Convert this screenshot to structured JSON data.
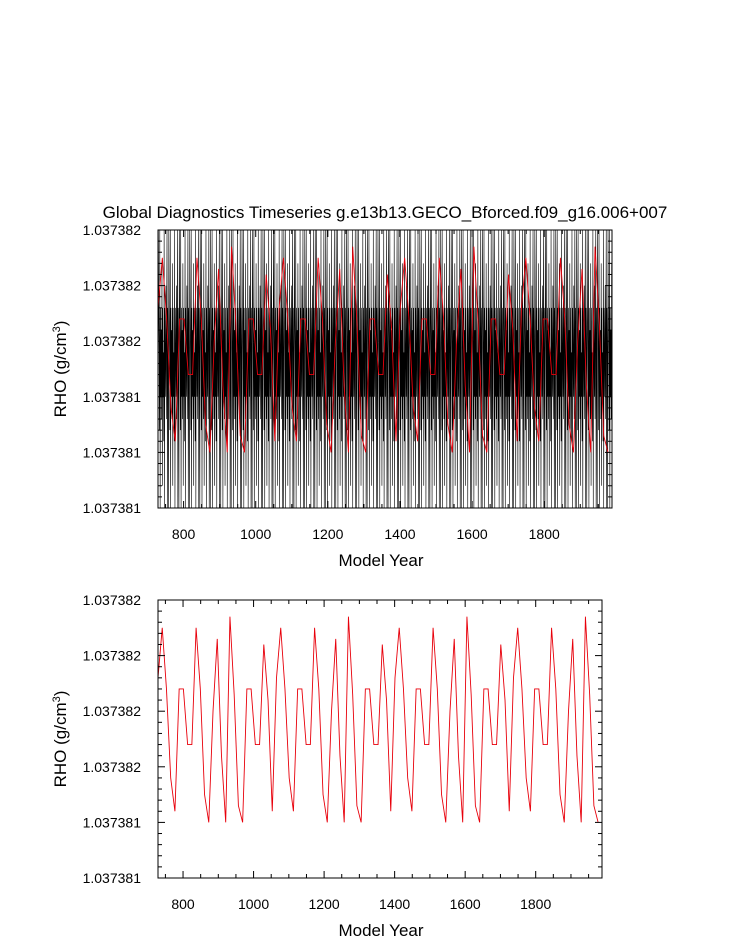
{
  "chart_data": [
    {
      "type": "line",
      "title": "Global Diagnostics Timeseries g.e13b13.GECO_Bforced.f09_g16.006+007",
      "xlabel": "Model Year",
      "ylabel_main": "RHO (g/cm",
      "ylabel_sup": "3",
      "ylabel_close": ")",
      "xlim": [
        729,
        1988
      ],
      "ylim": [
        0,
        5
      ],
      "x_ticks": [
        {
          "value": 800,
          "label": "800"
        },
        {
          "value": 1000,
          "label": "1000"
        },
        {
          "value": 1200,
          "label": "1200"
        },
        {
          "value": 1400,
          "label": "1400"
        },
        {
          "value": 1600,
          "label": "1600"
        },
        {
          "value": 1800,
          "label": "1800"
        }
      ],
      "y_ticks": [
        {
          "value": 0,
          "label": "1.037381"
        },
        {
          "value": 1,
          "label": "1.037381"
        },
        {
          "value": 2,
          "label": "1.037381"
        },
        {
          "value": 3,
          "label": "1.037382"
        },
        {
          "value": 4,
          "label": "1.037382"
        },
        {
          "value": 5,
          "label": "1.037382"
        }
      ],
      "series": [
        {
          "color": "#000000",
          "period": 1,
          "values": [
            0.0,
            5.0,
            3.6,
            2.8,
            1.4,
            5.0,
            0.0,
            3.6,
            2.0,
            3.2,
            1.6,
            4.4,
            0.4,
            3.6,
            2.0,
            2.8,
            1.2,
            5.0,
            0.0,
            3.6,
            2.8,
            2.0,
            4.0,
            1.6,
            3.2,
            5.0,
            0.0,
            3.6,
            2.8
          ]
        },
        {
          "color": "#e8000b",
          "period": 12,
          "values": [
            3.6,
            4.5,
            3.4,
            1.8,
            1.2,
            3.4,
            3.4,
            2.4,
            2.4,
            4.5,
            3.4,
            1.5,
            1.0,
            3.0,
            4.3,
            2.2,
            1.0,
            4.7,
            3.3,
            1.3,
            1.0,
            3.4,
            3.4,
            2.4,
            2.4,
            4.2,
            3.2,
            1.2
          ]
        }
      ]
    },
    {
      "type": "line",
      "title": "",
      "xlabel": "Model Year",
      "ylabel_main": "RHO (g/cm",
      "ylabel_sup": "3",
      "ylabel_close": ")",
      "xlim": [
        729,
        1988
      ],
      "ylim": [
        0,
        5
      ],
      "x_ticks": [
        {
          "value": 800,
          "label": "800"
        },
        {
          "value": 1000,
          "label": "1000"
        },
        {
          "value": 1200,
          "label": "1200"
        },
        {
          "value": 1400,
          "label": "1400"
        },
        {
          "value": 1600,
          "label": "1600"
        },
        {
          "value": 1800,
          "label": "1800"
        }
      ],
      "y_ticks": [
        {
          "value": 0,
          "label": "1.037381"
        },
        {
          "value": 1,
          "label": "1.037381"
        },
        {
          "value": 2,
          "label": "1.037382"
        },
        {
          "value": 3,
          "label": "1.037382"
        },
        {
          "value": 4,
          "label": "1.037382"
        },
        {
          "value": 5,
          "label": "1.037382"
        }
      ],
      "series": [
        {
          "color": "#e8000b",
          "period": 12,
          "values": [
            3.6,
            4.5,
            3.4,
            1.8,
            1.2,
            3.4,
            3.4,
            2.4,
            2.4,
            4.5,
            3.4,
            1.5,
            1.0,
            3.0,
            4.3,
            2.2,
            1.0,
            4.7,
            3.3,
            1.3,
            1.0,
            3.4,
            3.4,
            2.4,
            2.4,
            4.2,
            3.2,
            1.2
          ]
        }
      ]
    }
  ]
}
